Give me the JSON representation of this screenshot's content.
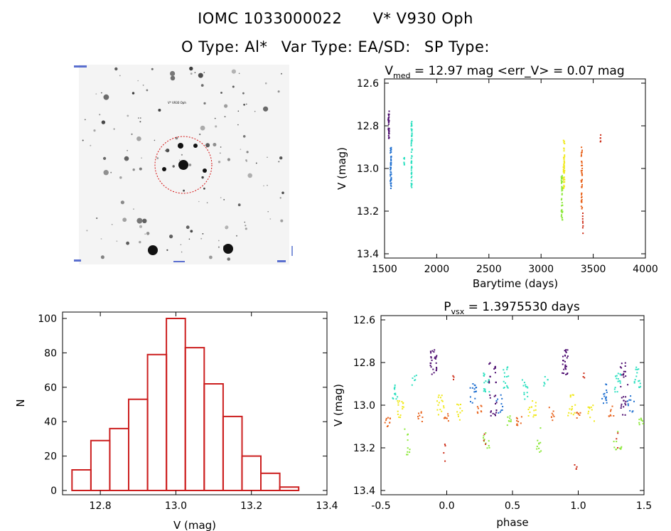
{
  "header": {
    "iomc_id": "IOMC 1033000022",
    "star_name": "V* V930 Oph",
    "otype": "O Type: Al*",
    "vartype": "Var Type: EA/SD:",
    "sptype": "SP Type:"
  },
  "finder": {
    "tiny_labels": [
      "",
      "V* V930 Oph",
      "",
      ""
    ]
  },
  "colors": {
    "histogram": "#cc1f1f",
    "finder_circle": "#d41010",
    "seasons": [
      "#4b0a6e",
      "#1e6fd0",
      "#2ee0c0",
      "#f0e81a",
      "#8ce83a",
      "#e8641e",
      "#cc2a14"
    ]
  },
  "chart_data": [
    {
      "type": "scatter",
      "panel": "lightcurve",
      "title": "V_med = 12.97 mag <err_V> = 0.07 mag",
      "title_parts": {
        "v": "V",
        "sub": "med",
        "rest": " = 12.97 mag <err_V> = 0.07 mag"
      },
      "xlabel": "Barytime (days)",
      "ylabel": "V (mag)",
      "xlim": [
        1500,
        4000
      ],
      "ylim": [
        13.42,
        12.58
      ],
      "y_inverted": true,
      "xticks": [
        1500,
        2000,
        2500,
        3000,
        3500,
        4000
      ],
      "yticks": [
        "12.6",
        "12.8",
        "13.0",
        "13.2",
        "13.4"
      ],
      "clusters": [
        {
          "x": 1540,
          "dx": 10,
          "ylo": 12.73,
          "yhi": 12.86,
          "n": 30,
          "season": 0
        },
        {
          "x": 1560,
          "dx": 10,
          "ylo": 12.9,
          "yhi": 13.1,
          "n": 45,
          "season": 1
        },
        {
          "x": 1690,
          "dx": 8,
          "ylo": 12.94,
          "yhi": 13.0,
          "n": 8,
          "season": 2
        },
        {
          "x": 1760,
          "dx": 8,
          "ylo": 12.78,
          "yhi": 13.11,
          "n": 55,
          "season": 2
        },
        {
          "x": 3200,
          "dx": 12,
          "ylo": 13.03,
          "yhi": 13.25,
          "n": 40,
          "season": 4
        },
        {
          "x": 3220,
          "dx": 12,
          "ylo": 12.86,
          "yhi": 13.1,
          "n": 45,
          "season": 3
        },
        {
          "x": 3390,
          "dx": 10,
          "ylo": 12.9,
          "yhi": 13.2,
          "n": 45,
          "season": 5
        },
        {
          "x": 3400,
          "dx": 6,
          "ylo": 13.2,
          "yhi": 13.32,
          "n": 8,
          "season": 6
        },
        {
          "x": 3570,
          "dx": 4,
          "ylo": 12.84,
          "yhi": 12.88,
          "n": 5,
          "season": 6
        }
      ]
    },
    {
      "type": "bar",
      "panel": "histogram",
      "xlabel": "V (mag)",
      "ylabel": "N",
      "xlim": [
        12.7,
        13.4
      ],
      "ylim": [
        0,
        100
      ],
      "xticks": [
        "12.8",
        "13.0",
        "13.2",
        "13.4"
      ],
      "yticks": [
        "0",
        "20",
        "40",
        "60",
        "80",
        "100"
      ],
      "bin_edges": [
        12.725,
        12.775,
        12.825,
        12.875,
        12.925,
        12.975,
        13.025,
        13.075,
        13.125,
        13.175,
        13.225,
        13.275,
        13.325
      ],
      "values": [
        12,
        29,
        36,
        53,
        79,
        100,
        83,
        62,
        43,
        20,
        10,
        2,
        1
      ]
    },
    {
      "type": "scatter",
      "panel": "phased",
      "title": "P_vsx = 1.3975530 days",
      "title_parts": {
        "p": "P",
        "sub": "vsx",
        "rest": " = 1.3975530 days"
      },
      "xlabel": "phase",
      "ylabel": "V (mag)",
      "xlim": [
        -0.5,
        1.5
      ],
      "ylim": [
        13.42,
        12.58
      ],
      "y_inverted": true,
      "xticks": [
        "-0.5",
        "0.0",
        "0.5",
        "1.0",
        "1.5"
      ],
      "yticks": [
        "12.6",
        "12.8",
        "13.0",
        "13.2",
        "13.4"
      ],
      "clusters": [
        {
          "x": -0.1,
          "dx": 0.05,
          "ylo": 12.74,
          "yhi": 12.86,
          "n": 25,
          "season": 0
        },
        {
          "x": 0.35,
          "dx": 0.06,
          "ylo": 12.8,
          "yhi": 12.92,
          "n": 15,
          "season": 0
        },
        {
          "x": 0.35,
          "dx": 0.06,
          "ylo": 12.95,
          "yhi": 13.05,
          "n": 15,
          "season": 0
        },
        {
          "x": 0.2,
          "dx": 0.05,
          "ylo": 12.9,
          "yhi": 13.0,
          "n": 15,
          "season": 1
        },
        {
          "x": 0.4,
          "dx": 0.05,
          "ylo": 12.95,
          "yhi": 13.05,
          "n": 10,
          "season": 1
        },
        {
          "x": -0.4,
          "dx": 0.05,
          "ylo": 12.88,
          "yhi": 12.98,
          "n": 12,
          "season": 2
        },
        {
          "x": -0.25,
          "dx": 0.04,
          "ylo": 12.86,
          "yhi": 12.92,
          "n": 6,
          "season": 2
        },
        {
          "x": 0.3,
          "dx": 0.05,
          "ylo": 12.85,
          "yhi": 12.95,
          "n": 15,
          "season": 2
        },
        {
          "x": 0.45,
          "dx": 0.05,
          "ylo": 12.82,
          "yhi": 12.92,
          "n": 15,
          "season": 2
        },
        {
          "x": -0.35,
          "dx": 0.06,
          "ylo": 12.98,
          "yhi": 13.06,
          "n": 15,
          "season": 3
        },
        {
          "x": -0.05,
          "dx": 0.06,
          "ylo": 12.95,
          "yhi": 13.05,
          "n": 15,
          "season": 3
        },
        {
          "x": 0.1,
          "dx": 0.05,
          "ylo": 12.98,
          "yhi": 13.08,
          "n": 10,
          "season": 3
        },
        {
          "x": -0.3,
          "dx": 0.04,
          "ylo": 13.1,
          "yhi": 13.24,
          "n": 10,
          "season": 4
        },
        {
          "x": 0.3,
          "dx": 0.06,
          "ylo": 13.12,
          "yhi": 13.22,
          "n": 10,
          "season": 4
        },
        {
          "x": 0.48,
          "dx": 0.04,
          "ylo": 13.05,
          "yhi": 13.1,
          "n": 8,
          "season": 4
        },
        {
          "x": -0.45,
          "dx": 0.04,
          "ylo": 13.05,
          "yhi": 13.1,
          "n": 10,
          "season": 5
        },
        {
          "x": -0.2,
          "dx": 0.04,
          "ylo": 13.0,
          "yhi": 13.08,
          "n": 8,
          "season": 5
        },
        {
          "x": 0.0,
          "dx": 0.04,
          "ylo": 13.03,
          "yhi": 13.08,
          "n": 8,
          "season": 5
        },
        {
          "x": 0.25,
          "dx": 0.04,
          "ylo": 13.0,
          "yhi": 13.06,
          "n": 8,
          "season": 5
        },
        {
          "x": -0.02,
          "dx": 0.02,
          "ylo": 13.18,
          "yhi": 13.32,
          "n": 4,
          "season": 6
        },
        {
          "x": 0.05,
          "dx": 0.03,
          "ylo": 12.84,
          "yhi": 12.88,
          "n": 3,
          "season": 6
        },
        {
          "x": 0.3,
          "dx": 0.04,
          "ylo": 13.13,
          "yhi": 13.2,
          "n": 3,
          "season": 6
        }
      ]
    }
  ]
}
